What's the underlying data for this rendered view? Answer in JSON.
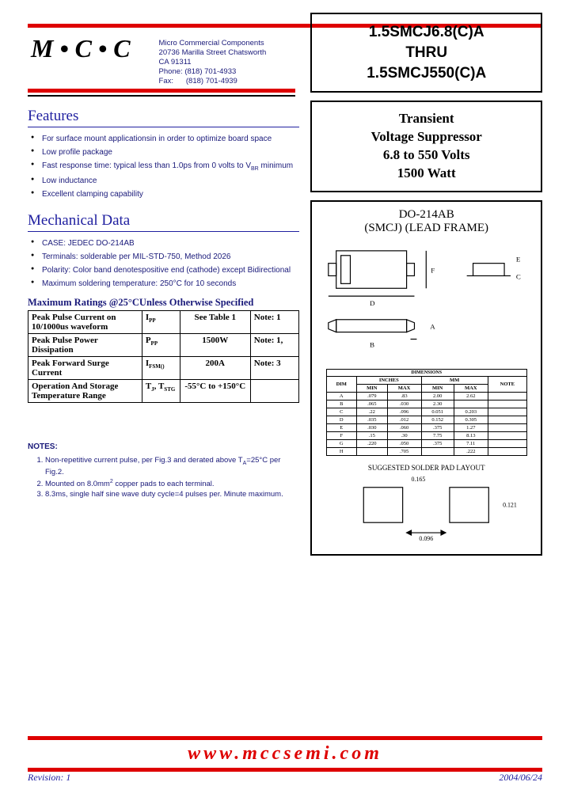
{
  "logo": "M•C•C",
  "company": {
    "name": "Micro Commercial Components",
    "addr1": "20736 Marilla Street Chatsworth",
    "addr2": "CA 91311",
    "phone_label": "Phone:",
    "phone": "(818) 701-4933",
    "fax_label": "Fax:",
    "fax": "(818) 701-4939"
  },
  "part_box": {
    "line1": "1.5SMCJ6.8(C)A",
    "line2": "THRU",
    "line3": "1.5SMCJ550(C)A"
  },
  "desc_box": {
    "l1": "Transient",
    "l2": "Voltage Suppressor",
    "l3": "6.8 to 550 Volts",
    "l4": "1500 Watt"
  },
  "pkg": {
    "t1": "DO-214AB",
    "t2": "(SMCJ) (LEAD FRAME)",
    "dim_header": "DIMENSIONS",
    "cols": [
      "DIM",
      "MIN",
      "MAX",
      "MIN",
      "MAX",
      "NOTE"
    ],
    "unit_cols": [
      "",
      "INCHES",
      "MM",
      ""
    ],
    "rows": [
      [
        "A",
        ".079",
        ".83",
        "2.00",
        "2.62",
        ""
      ],
      [
        "B",
        ".065",
        ".030",
        "2.30",
        "",
        ""
      ],
      [
        "C",
        ".22",
        ".096",
        "0.051",
        "0.203",
        ""
      ],
      [
        "D",
        ".035",
        ".012",
        "0.152",
        "0.305",
        ""
      ],
      [
        "E",
        ".030",
        ".060",
        ".375",
        "1.27",
        ""
      ],
      [
        "F",
        ".15",
        ".30",
        "7.75",
        "8.13",
        ""
      ],
      [
        "G",
        ".220",
        ".050",
        ".375",
        "7.11",
        ""
      ],
      [
        "H",
        "",
        ".705",
        "",
        ".222",
        ""
      ]
    ],
    "solder_title": "SUGGESTED SOLDER PAD LAYOUT",
    "solder_w": "0.165",
    "solder_h": "0.121",
    "solder_gap": "0.096"
  },
  "features": {
    "heading": "Features",
    "items": [
      "For surface mount applicationsin in order to optimize board space",
      "Low profile package",
      "Fast response time: typical less than 1.0ps from 0 volts to V<sub>BR</sub> minimum",
      "Low inductance",
      "Excellent clamping capability"
    ]
  },
  "mech": {
    "heading": "Mechanical Data",
    "items": [
      "CASE: JEDEC DO-214AB",
      "Terminals:  solderable per MIL-STD-750, Method 2026",
      "Polarity:  Color band denotespositive end (cathode) except Bidirectional",
      "Maximum soldering temperature: 250°C for 10 seconds"
    ]
  },
  "ratings": {
    "title": "Maximum Ratings @25°CUnless Otherwise Specified",
    "rows": [
      [
        "Peak Pulse Current on 10/1000us waveform",
        "I<sub>PP</sub>",
        "See Table 1",
        "Note: 1"
      ],
      [
        "Peak Pulse Power Dissipation",
        "P<sub>PP</sub>",
        "1500W",
        "Note: 1,"
      ],
      [
        "Peak Forward Surge Current",
        "I<sub>FSM()</sub>",
        "200A",
        "Note: 3"
      ],
      [
        "Operation And Storage Temperature Range",
        "T<sub>J</sub>, T<sub>STG</sub>",
        "-55°C to +150°C",
        ""
      ]
    ]
  },
  "notes": {
    "heading": "NOTES:",
    "items": [
      "Non-repetitive current pulse,  per Fig.3 and derated above T<sub>A</sub>=25°C per Fig.2.",
      "Mounted on 8.0mm<sup>2</sup> copper pads to each terminal.",
      "8.3ms, single half sine wave duty cycle=4 pulses per. Minute maximum."
    ]
  },
  "footer": {
    "url": "www.mccsemi.com",
    "rev": "Revision: 1",
    "date": "2004/06/24"
  },
  "colors": {
    "red": "#de0000",
    "blue": "#2020a0",
    "text_blue": "#1a1a7a"
  }
}
